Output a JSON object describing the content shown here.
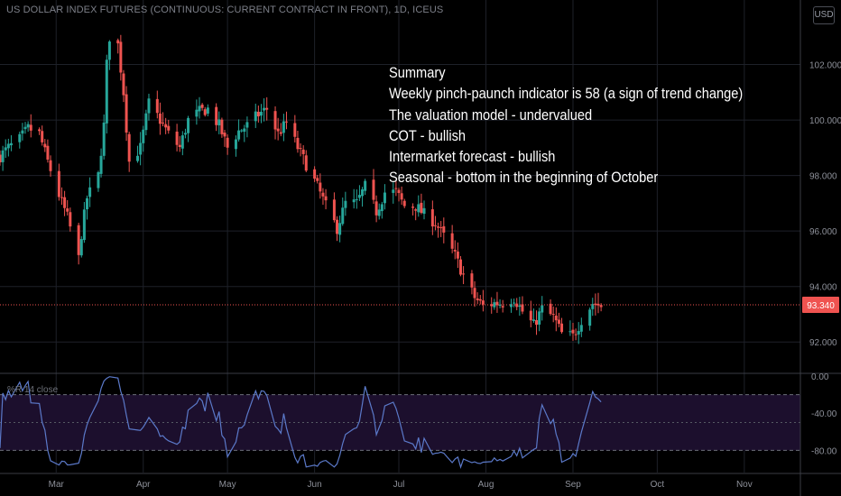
{
  "chart": {
    "title": "US DOLLAR INDEX FUTURES (CONTINUOUS: CURRENT CONTRACT IN FRONT), 1D, ICEUS",
    "currency": "USD",
    "last_price": "93.340",
    "price_tick_labels": [
      "102.000",
      "100.000",
      "98.000",
      "96.000",
      "94.000",
      "92.000"
    ],
    "indicator_tick_labels": [
      "0.00",
      "-40.00",
      "-80.00"
    ],
    "month_labels": [
      "Mar",
      "Apr",
      "May",
      "Jun",
      "Jul",
      "Aug",
      "Sep",
      "Oct",
      "Nov"
    ],
    "indicator_label": "%R 14 close"
  },
  "summary": {
    "lines": [
      "Summary",
      "Weekly pinch-paunch indicator is 58 (a sign of trend change)",
      "The valuation model - undervalued",
      "COT - bullish",
      "Intermarket forecast - bullish",
      "Seasonal - bottom in the beginning of October"
    ]
  },
  "chart_data": {
    "type": "candlestick",
    "series_main": "US Dollar Index daily close",
    "ylim": [
      91.0,
      104.0
    ],
    "x_range": [
      "2020-02-10",
      "2020-11-20"
    ],
    "up_color": "#26a69a",
    "down_color": "#ef5350",
    "grid": true,
    "close": [
      [
        "2020-02-10",
        98.7
      ],
      [
        "2020-02-13",
        99.0
      ],
      [
        "2020-02-17",
        99.3
      ],
      [
        "2020-02-20",
        99.7
      ],
      [
        "2020-02-24",
        99.5
      ],
      [
        "2020-02-27",
        98.5
      ],
      [
        "2020-03-02",
        97.3
      ],
      [
        "2020-03-05",
        96.5
      ],
      [
        "2020-03-09",
        95.0
      ],
      [
        "2020-03-10",
        95.9
      ],
      [
        "2020-03-12",
        97.2
      ],
      [
        "2020-03-16",
        98.0
      ],
      [
        "2020-03-18",
        99.8
      ],
      [
        "2020-03-19",
        102.0
      ],
      [
        "2020-03-20",
        103.0
      ],
      [
        "2020-03-23",
        102.7
      ],
      [
        "2020-03-25",
        101.0
      ],
      [
        "2020-03-27",
        98.5
      ],
      [
        "2020-03-31",
        99.0
      ],
      [
        "2020-04-03",
        100.6
      ],
      [
        "2020-04-07",
        100.0
      ],
      [
        "2020-04-10",
        99.5
      ],
      [
        "2020-04-14",
        99.0
      ],
      [
        "2020-04-17",
        100.0
      ],
      [
        "2020-04-21",
        100.3
      ],
      [
        "2020-04-24",
        100.4
      ],
      [
        "2020-04-28",
        99.8
      ],
      [
        "2020-05-01",
        99.0
      ],
      [
        "2020-05-05",
        99.6
      ],
      [
        "2020-05-08",
        99.8
      ],
      [
        "2020-05-12",
        100.2
      ],
      [
        "2020-05-15",
        100.4
      ],
      [
        "2020-05-19",
        99.5
      ],
      [
        "2020-05-22",
        99.9
      ],
      [
        "2020-05-26",
        99.0
      ],
      [
        "2020-05-29",
        98.4
      ],
      [
        "2020-06-02",
        97.6
      ],
      [
        "2020-06-05",
        96.9
      ],
      [
        "2020-06-09",
        96.1
      ],
      [
        "2020-06-12",
        97.0
      ],
      [
        "2020-06-16",
        97.0
      ],
      [
        "2020-06-19",
        97.6
      ],
      [
        "2020-06-23",
        96.7
      ],
      [
        "2020-06-26",
        97.4
      ],
      [
        "2020-06-30",
        97.4
      ],
      [
        "2020-07-03",
        96.9
      ],
      [
        "2020-07-07",
        96.9
      ],
      [
        "2020-07-10",
        96.6
      ],
      [
        "2020-07-14",
        96.3
      ],
      [
        "2020-07-17",
        95.8
      ],
      [
        "2020-07-21",
        95.1
      ],
      [
        "2020-07-24",
        94.4
      ],
      [
        "2020-07-28",
        93.6
      ],
      [
        "2020-07-31",
        93.3
      ],
      [
        "2020-08-04",
        93.4
      ],
      [
        "2020-08-07",
        93.4
      ],
      [
        "2020-08-11",
        93.6
      ],
      [
        "2020-08-14",
        93.1
      ],
      [
        "2020-08-18",
        92.6
      ],
      [
        "2020-08-21",
        93.2
      ],
      [
        "2020-08-25",
        92.9
      ],
      [
        "2020-08-28",
        92.3
      ],
      [
        "2020-09-01",
        92.2
      ],
      [
        "2020-09-04",
        92.8
      ],
      [
        "2020-09-08",
        93.4
      ],
      [
        "2020-09-11",
        93.3
      ]
    ],
    "williams_r": {
      "name": "%R 14 close",
      "ylim": [
        -100,
        0
      ],
      "levels": [
        -20,
        -50,
        -80
      ]
    }
  }
}
